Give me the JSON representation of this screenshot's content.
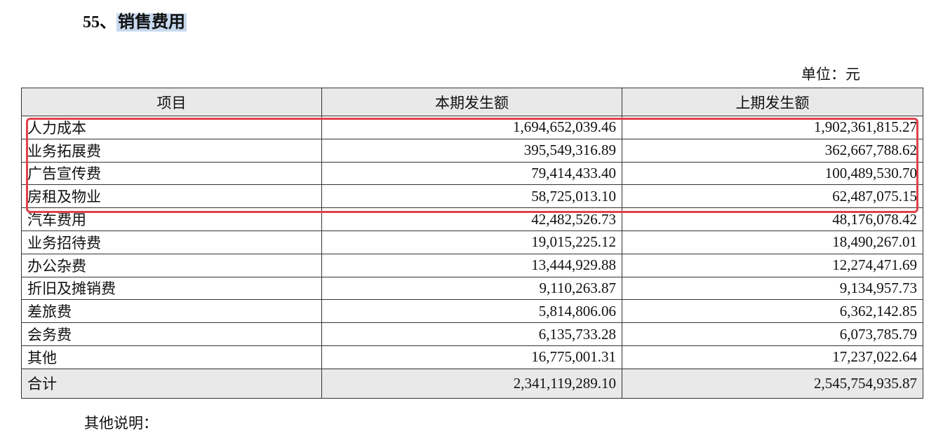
{
  "header": {
    "section": "55、",
    "title": "销售费用",
    "unit": "单位：元"
  },
  "table": {
    "columns": [
      "项目",
      "本期发生额",
      "上期发生额"
    ],
    "rows": [
      [
        "人力成本",
        "1,694,652,039.46",
        "1,902,361,815.27"
      ],
      [
        "业务拓展费",
        "395,549,316.89",
        "362,667,788.62"
      ],
      [
        "广告宣传费",
        "79,414,433.40",
        "100,489,530.70"
      ],
      [
        "房租及物业",
        "58,725,013.10",
        "62,487,075.15"
      ],
      [
        "汽车费用",
        "42,482,526.73",
        "48,176,078.42"
      ],
      [
        "业务招待费",
        "19,015,225.12",
        "18,490,267.01"
      ],
      [
        "办公杂费",
        "13,444,929.88",
        "12,274,471.69"
      ],
      [
        "折旧及摊销费",
        "9,110,263.87",
        "9,134,957.73"
      ],
      [
        "差旅费",
        "5,814,806.06",
        "6,362,142.85"
      ],
      [
        "会务费",
        "6,135,733.28",
        "6,073,785.79"
      ],
      [
        "其他",
        "16,775,001.31",
        "17,237,022.64"
      ]
    ],
    "total": [
      "合计",
      "2,341,119,289.10",
      "2,545,754,935.87"
    ]
  },
  "footer": {
    "note": "其他说明："
  }
}
